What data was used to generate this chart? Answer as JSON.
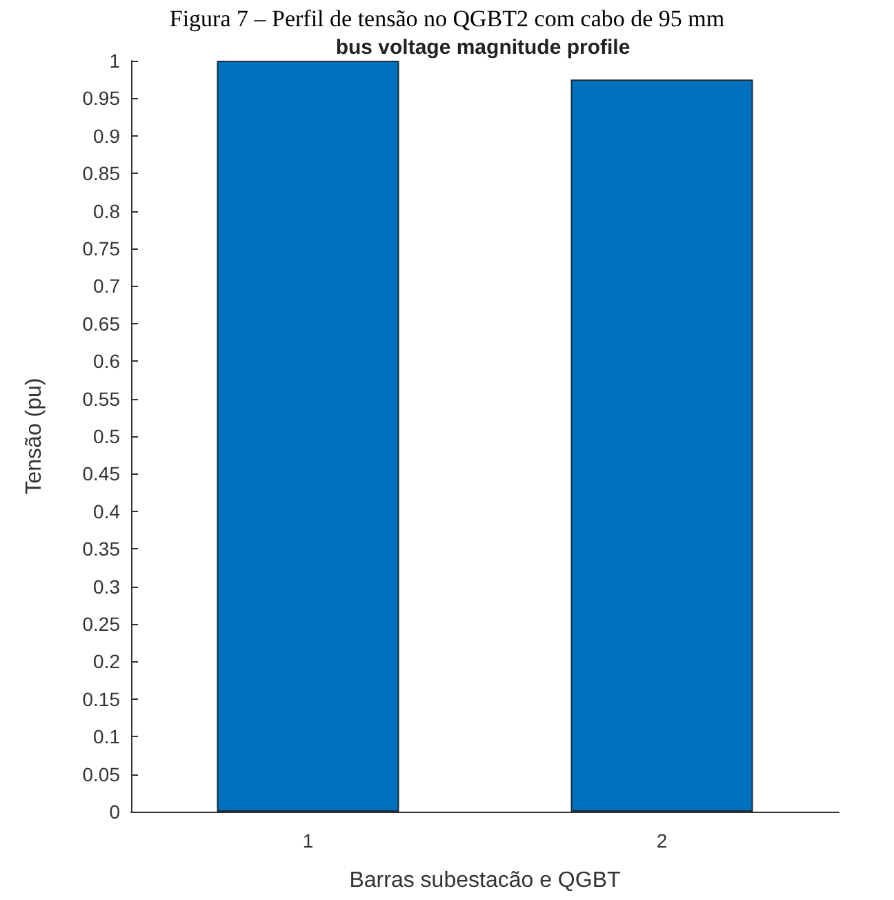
{
  "chart_data": {
    "type": "bar",
    "title": "Figura 7 – Perfil de tensão no QGBT2 com cabo de 95 mm",
    "subtitle": "bus voltage magnitude profile",
    "xlabel": "Barras subestacão e QGBT",
    "ylabel": "Tensão (pu)",
    "categories": [
      "1",
      "2"
    ],
    "values": [
      1.0,
      0.975
    ],
    "color": "#0072bd",
    "ylim": [
      0,
      1
    ],
    "yticks": [
      0,
      0.05,
      0.1,
      0.15,
      0.2,
      0.25,
      0.3,
      0.35,
      0.4,
      0.45,
      0.5,
      0.55,
      0.6,
      0.65,
      0.7,
      0.75,
      0.8,
      0.85,
      0.9,
      0.95,
      1
    ],
    "grid": false
  }
}
